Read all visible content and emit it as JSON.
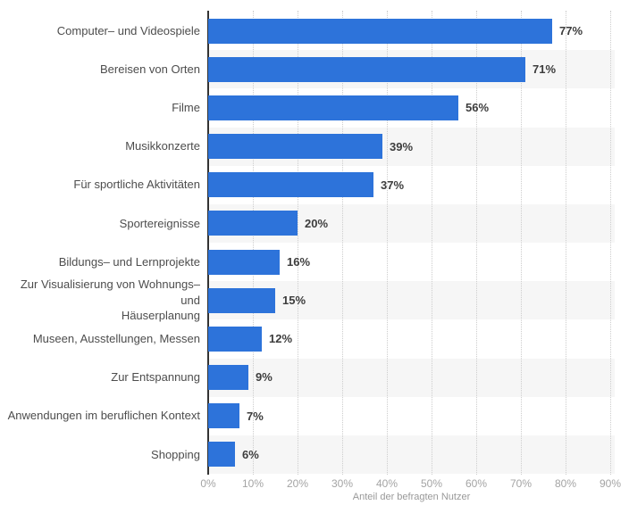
{
  "chart_data": {
    "type": "bar",
    "orientation": "horizontal",
    "title": "",
    "xlabel": "Anteil der befragten Nutzer",
    "ylabel": "",
    "categories": [
      "Computer– und Videospiele",
      "Bereisen von Orten",
      "Filme",
      "Musikkonzerte",
      "Für sportliche Aktivitäten",
      "Sportereignisse",
      "Bildungs– und Lernprojekte",
      "Zur Visualisierung von Wohnungs– und\nHäuserplanung",
      "Museen, Ausstellungen, Messen",
      "Zur Entspannung",
      "Anwendungen im beruflichen Kontext",
      "Shopping"
    ],
    "values": [
      77,
      71,
      56,
      39,
      37,
      20,
      16,
      15,
      12,
      9,
      7,
      6
    ],
    "value_labels": [
      "77%",
      "71%",
      "56%",
      "39%",
      "37%",
      "20%",
      "16%",
      "15%",
      "12%",
      "9%",
      "7%",
      "6%"
    ],
    "x_ticks": [
      "0%",
      "10%",
      "20%",
      "30%",
      "40%",
      "50%",
      "60%",
      "70%",
      "80%",
      "90%"
    ],
    "xlim": [
      0,
      90
    ],
    "grid": "dotted-vertical-on",
    "legend": "none",
    "colors": {
      "bar": "#2d73da",
      "row_stripe": "#f6f6f6",
      "axis_line": "#333333",
      "gridline": "#cdcdcd",
      "category_label": "#4d4d4d",
      "value_label": "#3d3d3d",
      "tick_label": "#a4a4a4",
      "caption": "#999999"
    }
  }
}
